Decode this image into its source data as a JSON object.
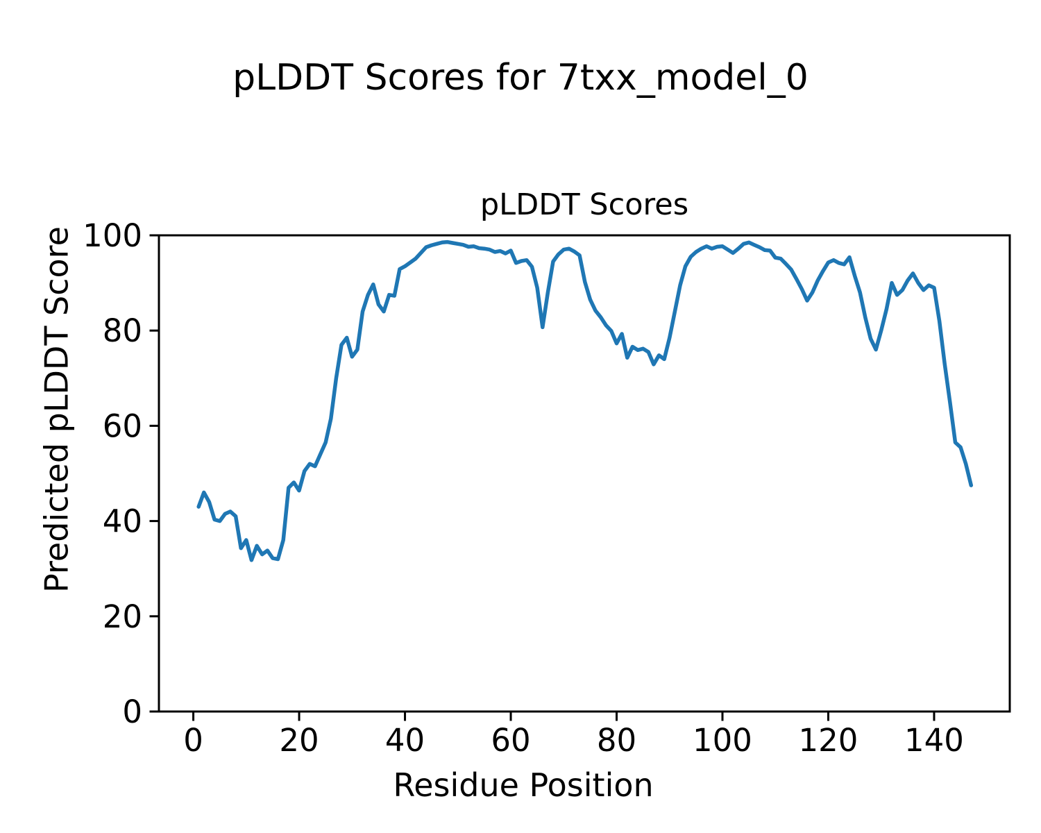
{
  "figure": {
    "suptitle": "pLDDT Scores for 7txx_model_0",
    "background_color": "#ffffff",
    "text_color": "#000000"
  },
  "chart_data": {
    "type": "line",
    "title": "pLDDT Scores",
    "xlabel": "Residue Position",
    "ylabel": "Predicted pLDDT Score",
    "xlim": [
      -6.5,
      154.3
    ],
    "ylim": [
      0,
      100
    ],
    "xticks": [
      0,
      20,
      40,
      60,
      80,
      100,
      120,
      140
    ],
    "yticks": [
      0,
      20,
      40,
      60,
      80,
      100
    ],
    "grid": false,
    "legend": null,
    "line_color": "#1f77b4",
    "series": [
      {
        "name": "pLDDT",
        "x": [
          1,
          2,
          3,
          4,
          5,
          6,
          7,
          8,
          9,
          10,
          11,
          12,
          13,
          14,
          15,
          16,
          17,
          18,
          19,
          20,
          21,
          22,
          23,
          24,
          25,
          26,
          27,
          28,
          29,
          30,
          31,
          32,
          33,
          34,
          35,
          36,
          37,
          38,
          39,
          40,
          41,
          42,
          43,
          44,
          45,
          46,
          47,
          48,
          49,
          50,
          51,
          52,
          53,
          54,
          55,
          56,
          57,
          58,
          59,
          60,
          61,
          62,
          63,
          64,
          65,
          66,
          67,
          68,
          69,
          70,
          71,
          72,
          73,
          74,
          75,
          76,
          77,
          78,
          79,
          80,
          81,
          82,
          83,
          84,
          85,
          86,
          87,
          88,
          89,
          90,
          91,
          92,
          93,
          94,
          95,
          96,
          97,
          98,
          99,
          100,
          101,
          102,
          103,
          104,
          105,
          106,
          107,
          108,
          109,
          110,
          111,
          112,
          113,
          114,
          115,
          116,
          117,
          118,
          119,
          120,
          121,
          122,
          123,
          124,
          125,
          126,
          127,
          128,
          129,
          130,
          131,
          132,
          133,
          134,
          135,
          136,
          137,
          138,
          139,
          140,
          141,
          142,
          143,
          144,
          145,
          146,
          147
        ],
        "values": [
          43.0,
          46.0,
          44.0,
          40.3,
          40.0,
          41.5,
          42.0,
          41.0,
          34.3,
          36.0,
          31.8,
          34.8,
          33.0,
          33.8,
          32.2,
          32.0,
          36.0,
          47.0,
          48.1,
          46.4,
          50.5,
          52.0,
          51.5,
          54.0,
          56.5,
          61.5,
          70.0,
          77.0,
          78.5,
          74.5,
          76.0,
          84.0,
          87.5,
          89.7,
          85.5,
          84.0,
          87.5,
          87.3,
          92.9,
          93.5,
          94.3,
          95.1,
          96.3,
          97.5,
          97.9,
          98.2,
          98.5,
          98.6,
          98.4,
          98.2,
          98.0,
          97.6,
          97.7,
          97.3,
          97.2,
          97.0,
          96.5,
          96.7,
          96.2,
          96.8,
          94.2,
          94.6,
          94.8,
          93.4,
          89.0,
          80.7,
          88.0,
          94.5,
          96.0,
          97.0,
          97.2,
          96.6,
          95.8,
          90.2,
          86.5,
          84.2,
          82.8,
          81.1,
          79.9,
          77.3,
          79.3,
          74.3,
          76.6,
          75.9,
          76.2,
          75.5,
          72.9,
          74.8,
          74.0,
          78.5,
          84.0,
          89.5,
          93.5,
          95.5,
          96.5,
          97.2,
          97.7,
          97.2,
          97.6,
          97.7,
          97.0,
          96.3,
          97.2,
          98.2,
          98.5,
          98.0,
          97.5,
          96.9,
          96.8,
          95.3,
          95.1,
          94.0,
          92.8,
          90.8,
          88.7,
          86.3,
          88.0,
          90.5,
          92.5,
          94.3,
          94.8,
          94.2,
          93.9,
          95.4,
          91.5,
          88.0,
          82.7,
          78.3,
          76.0,
          80.0,
          84.5,
          90.0,
          87.5,
          88.5,
          90.5,
          92.0,
          90.0,
          88.5,
          89.5,
          89.0,
          82.0,
          73.0,
          65.0,
          56.5,
          55.5,
          52.0,
          47.5
        ]
      }
    ]
  }
}
